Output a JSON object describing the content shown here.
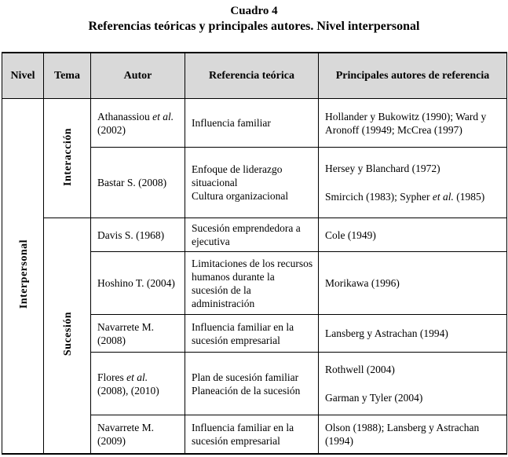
{
  "page": {
    "caption_number": "Cuadro 4",
    "caption_title": "Referencias teóricas y principales autores. Nivel interpersonal"
  },
  "colors": {
    "header_bg": "#d9d9d9",
    "border": "#000000"
  },
  "table": {
    "headers": [
      "Nivel",
      "Tema",
      "Autor",
      "Referencia teórica",
      "Principales autores de referencia"
    ],
    "nivel_label": "Interpersonal",
    "tema_groups": [
      {
        "label": "Interacción",
        "row_count": 2
      },
      {
        "label": "Sucesión",
        "row_count": 5
      }
    ],
    "rows": [
      {
        "autor": [
          {
            "t": "Athanassiou ",
            "i": false
          },
          {
            "t": "et al.",
            "i": true
          },
          {
            "t": " (2002)",
            "i": false
          }
        ],
        "referencia": [
          {
            "parts": [
              {
                "t": "Influencia familiar",
                "i": false
              }
            ]
          }
        ],
        "autores": [
          {
            "parts": [
              {
                "t": "Hollander y Bukowitz (1990); Ward y Aronoff (19949; McCrea (1997)",
                "i": false
              }
            ]
          }
        ]
      },
      {
        "autor": [
          {
            "t": "Bastar S. (2008)",
            "i": false
          }
        ],
        "referencia": [
          {
            "parts": [
              {
                "t": "Enfoque de liderazgo situacional",
                "i": false
              }
            ]
          },
          {
            "parts": [
              {
                "t": "Cultura organizacional",
                "i": false
              }
            ]
          }
        ],
        "autores": [
          {
            "parts": [
              {
                "t": "Hersey y Blanchard (1972)",
                "i": false
              }
            ]
          },
          {
            "gap": true,
            "parts": [
              {
                "t": "Smircich (1983); Sypher ",
                "i": false
              },
              {
                "t": "et al.",
                "i": true
              },
              {
                "t": " (1985)",
                "i": false
              }
            ]
          }
        ]
      },
      {
        "autor": [
          {
            "t": "Davis S. (1968)",
            "i": false
          }
        ],
        "referencia": [
          {
            "parts": [
              {
                "t": "Sucesión emprendedora a ejecutiva",
                "i": false
              }
            ]
          }
        ],
        "autores": [
          {
            "parts": [
              {
                "t": "Cole (1949)",
                "i": false
              }
            ]
          }
        ]
      },
      {
        "autor": [
          {
            "t": "Hoshino T. (2004)",
            "i": false
          }
        ],
        "referencia": [
          {
            "parts": [
              {
                "t": "Limitaciones de los recursos humanos durante la sucesión de la administración",
                "i": false
              }
            ]
          }
        ],
        "autores": [
          {
            "parts": [
              {
                "t": "Morikawa (1996)",
                "i": false
              }
            ]
          }
        ]
      },
      {
        "autor": [
          {
            "t": "Navarrete M. (2008)",
            "i": false
          }
        ],
        "referencia": [
          {
            "parts": [
              {
                "t": "Influencia familiar en la sucesión empresarial",
                "i": false
              }
            ]
          }
        ],
        "autores": [
          {
            "parts": [
              {
                "t": "Lansberg y Astrachan (1994)",
                "i": false
              }
            ]
          }
        ]
      },
      {
        "autor": [
          {
            "t": "Flores ",
            "i": false
          },
          {
            "t": "et al.",
            "i": true
          },
          {
            "t": " (2008), (2010)",
            "i": false
          }
        ],
        "referencia": [
          {
            "parts": [
              {
                "t": "Plan de sucesión familiar",
                "i": false
              }
            ]
          },
          {
            "parts": [
              {
                "t": "Planeación de la sucesión",
                "i": false
              }
            ]
          }
        ],
        "autores": [
          {
            "parts": [
              {
                "t": "Rothwell (2004)",
                "i": false
              }
            ]
          },
          {
            "gap": true,
            "parts": [
              {
                "t": "Garman y Tyler (2004)",
                "i": false
              }
            ]
          }
        ]
      },
      {
        "autor": [
          {
            "t": "Navarrete M. (2009)",
            "i": false
          }
        ],
        "referencia": [
          {
            "parts": [
              {
                "t": "Influencia familiar en la sucesión empresarial",
                "i": false
              }
            ]
          }
        ],
        "autores": [
          {
            "parts": [
              {
                "t": "Olson (1988); Lansberg y Astrachan (1994)",
                "i": false
              }
            ]
          }
        ]
      }
    ]
  }
}
